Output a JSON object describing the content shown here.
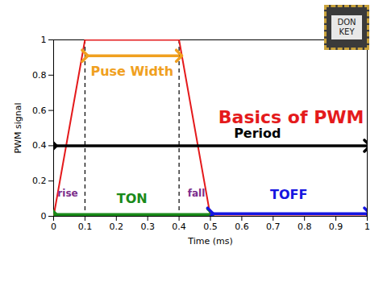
{
  "chart_data": {
    "type": "line",
    "title": "Basics of PWM",
    "x_label": "Time (ms)",
    "y_label": "PWM signal",
    "x": [
      0,
      0.1,
      0.4,
      0.5,
      1
    ],
    "values": [
      0,
      1,
      1,
      0,
      0
    ],
    "color": "#e41a1c",
    "xlim": [
      0,
      1
    ],
    "ylim": [
      0,
      1
    ],
    "xticks": [
      0,
      0.1,
      0.2,
      0.3,
      0.4,
      0.5,
      0.6,
      0.7,
      0.8,
      0.9,
      1
    ],
    "yticks": [
      0,
      0.2,
      0.4,
      0.6,
      0.8,
      1
    ],
    "grid": false,
    "vlines": {
      "x": [
        0.1,
        0.4
      ],
      "line_style": "dashed"
    },
    "annotations": [
      {
        "text": "Puse Width",
        "x": 0.25,
        "y": 0.82,
        "color": "#f0a020",
        "arrow": {
          "x1": 0.1,
          "x2": 0.4,
          "y": 0.91
        }
      },
      {
        "text": "Period",
        "x": 0.65,
        "y": 0.47,
        "color": "#000000",
        "arrow": {
          "x1": 0,
          "x2": 1,
          "y": 0.4
        }
      },
      {
        "text": "TON",
        "x": 0.25,
        "y": 0.1,
        "color": "#1a8a1a",
        "arrow": {
          "x1": 0,
          "x2": 0.5,
          "y": 0.01
        }
      },
      {
        "text": "TOFF",
        "x": 0.75,
        "y": 0.12,
        "color": "#1515e0",
        "arrow": {
          "x1": 0.5,
          "x2": 1,
          "y": 0.015
        }
      },
      {
        "text": "rise",
        "x": 0.045,
        "y": 0.13,
        "color": "#7b2d8b"
      },
      {
        "text": "fall",
        "x": 0.455,
        "y": 0.13,
        "color": "#7b2d8b"
      }
    ],
    "logo": "DON KEY"
  }
}
